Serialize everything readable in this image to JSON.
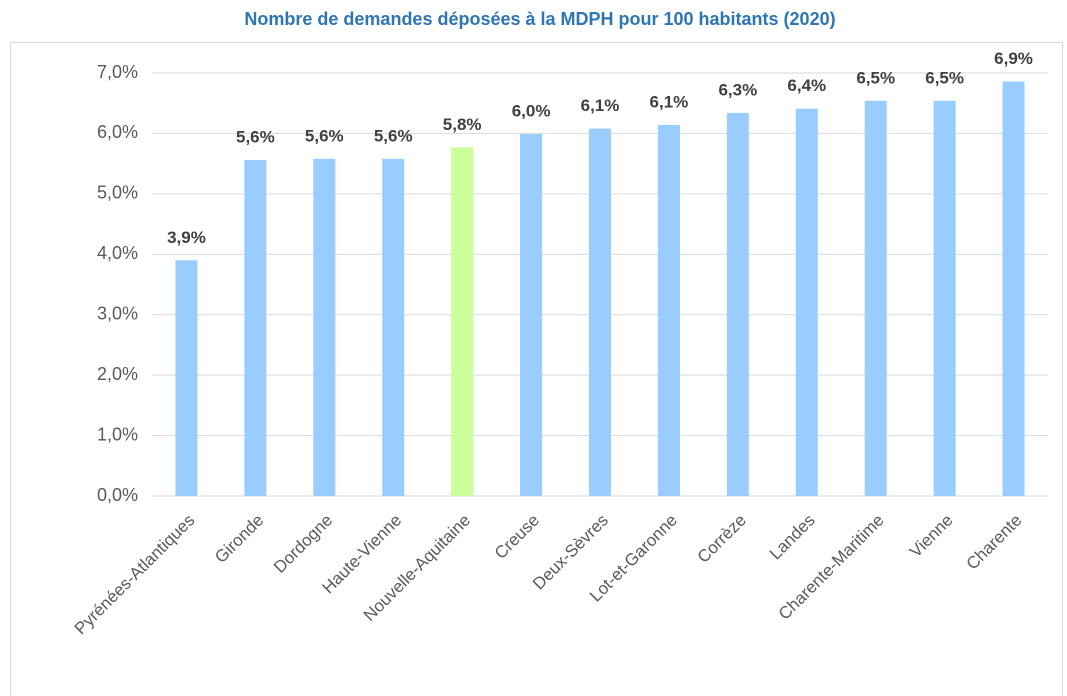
{
  "chart_data": {
    "type": "bar",
    "title": "Nombre de demandes déposées à la MDPH pour 100 habitants (2020)",
    "categories": [
      "Pyrénées-Atlantiques",
      "Gironde",
      "Dordogne",
      "Haute-Vienne",
      "Nouvelle-Aquitaine",
      "Creuse",
      "Deux-Sèvres",
      "Lot-et-Garonne",
      "Corrèze",
      "Landes",
      "Charente-Maritime",
      "Vienne",
      "Charente"
    ],
    "values": [
      3.9,
      5.56,
      5.58,
      5.58,
      5.77,
      5.99,
      6.08,
      6.14,
      6.34,
      6.41,
      6.54,
      6.54,
      6.86
    ],
    "value_labels": [
      "3,9%",
      "5,6%",
      "5,6%",
      "5,6%",
      "5,8%",
      "6,0%",
      "6,1%",
      "6,1%",
      "6,3%",
      "6,4%",
      "6,5%",
      "6,5%",
      "6,9%"
    ],
    "colors": [
      "#99ccff",
      "#99ccff",
      "#99ccff",
      "#99ccff",
      "#ccff99",
      "#99ccff",
      "#99ccff",
      "#99ccff",
      "#99ccff",
      "#99ccff",
      "#99ccff",
      "#99ccff",
      "#99ccff"
    ],
    "ylim": [
      0,
      7
    ],
    "yticks": [
      {
        "value": 0,
        "label": "0,0%"
      },
      {
        "value": 1,
        "label": "1,0%"
      },
      {
        "value": 2,
        "label": "2,0%"
      },
      {
        "value": 3,
        "label": "3,0%"
      },
      {
        "value": 4,
        "label": "4,0%"
      },
      {
        "value": 5,
        "label": "5,0%"
      },
      {
        "value": 6,
        "label": "6,0%"
      },
      {
        "value": 7,
        "label": "7,0%"
      }
    ],
    "grid": true
  }
}
